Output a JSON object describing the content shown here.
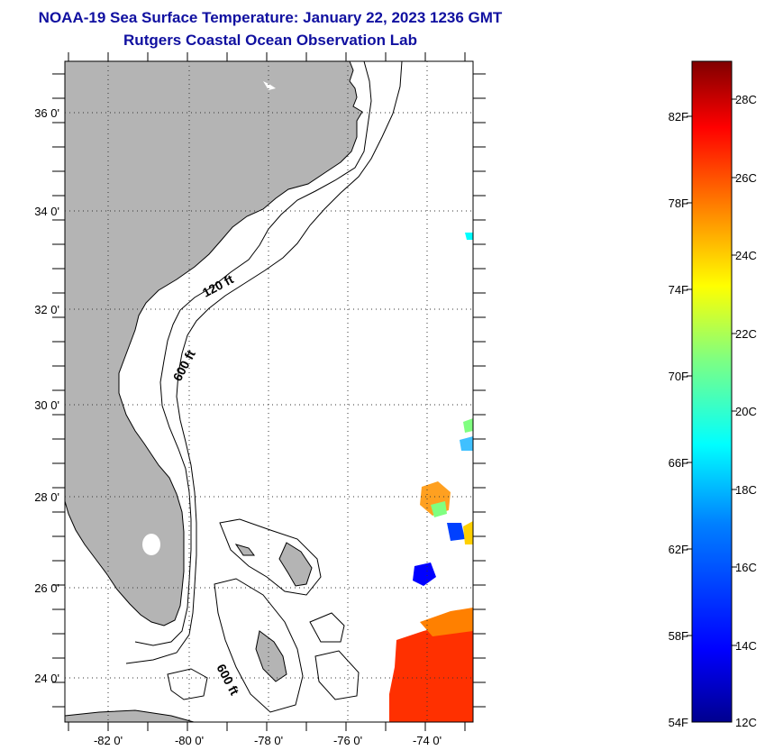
{
  "title_line1": "NOAA-19 Sea Surface Temperature:  January 22, 2023 1236 GMT",
  "title_line2": "Rutgers Coastal Ocean Observation Lab",
  "map": {
    "lat_labels": [
      "36 0'",
      "34 0'",
      "32 0'",
      "30 0'",
      "28 0'",
      "26 0'",
      "24 0'"
    ],
    "lon_labels": [
      "-82 0'",
      "-80 0'",
      "-78 0'",
      "-76 0'",
      "-74 0'"
    ],
    "depth_labels": [
      "120 ft",
      "600 ft",
      "600 ft"
    ]
  },
  "colorbar": {
    "f_labels": [
      "82F",
      "78F",
      "74F",
      "70F",
      "66F",
      "62F",
      "58F",
      "54F"
    ],
    "c_labels": [
      "28C",
      "26C",
      "24C",
      "22C",
      "20C",
      "18C",
      "16C",
      "14C",
      "12C"
    ],
    "colors": [
      "#00008f",
      "#0000ff",
      "#0080ff",
      "#00ffff",
      "#80ff80",
      "#ffff00",
      "#ff8000",
      "#ff0000",
      "#800000"
    ]
  }
}
